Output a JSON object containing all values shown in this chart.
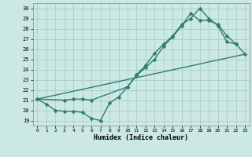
{
  "xlabel": "Humidex (Indice chaleur)",
  "bg_color": "#cce8e4",
  "grid_color": "#aaccca",
  "line_color": "#2e7d6e",
  "xlim": [
    -0.5,
    23.5
  ],
  "ylim": [
    18.5,
    30.5
  ],
  "xticks": [
    0,
    1,
    2,
    3,
    4,
    5,
    6,
    7,
    8,
    9,
    10,
    11,
    12,
    13,
    14,
    15,
    16,
    17,
    18,
    19,
    20,
    21,
    22,
    23
  ],
  "yticks": [
    19,
    20,
    21,
    22,
    23,
    24,
    25,
    26,
    27,
    28,
    29,
    30
  ],
  "line1_x": [
    0,
    1,
    2,
    3,
    4,
    5,
    6,
    7,
    8,
    9,
    10,
    11,
    12,
    13,
    14,
    15,
    16,
    17,
    18,
    19,
    20,
    21,
    22
  ],
  "line1_y": [
    21.1,
    20.6,
    20.0,
    19.9,
    19.9,
    19.8,
    19.2,
    19.0,
    20.7,
    21.3,
    22.3,
    23.5,
    24.4,
    25.6,
    26.5,
    27.3,
    28.4,
    29.0,
    30.0,
    29.0,
    28.3,
    26.7,
    26.5
  ],
  "line2_x": [
    0,
    3,
    4,
    5,
    6,
    10,
    11,
    12,
    13,
    14,
    15,
    16,
    17,
    18,
    19,
    20,
    21,
    22,
    23
  ],
  "line2_y": [
    21.1,
    21.0,
    21.1,
    21.1,
    21.0,
    22.3,
    23.4,
    24.2,
    25.0,
    26.3,
    27.2,
    28.3,
    29.5,
    28.8,
    28.8,
    28.4,
    27.3,
    26.5,
    25.5
  ],
  "line3_x": [
    0,
    23
  ],
  "line3_y": [
    21.1,
    25.5
  ],
  "marker": "D",
  "markersize": 2.5,
  "linewidth": 1.0
}
